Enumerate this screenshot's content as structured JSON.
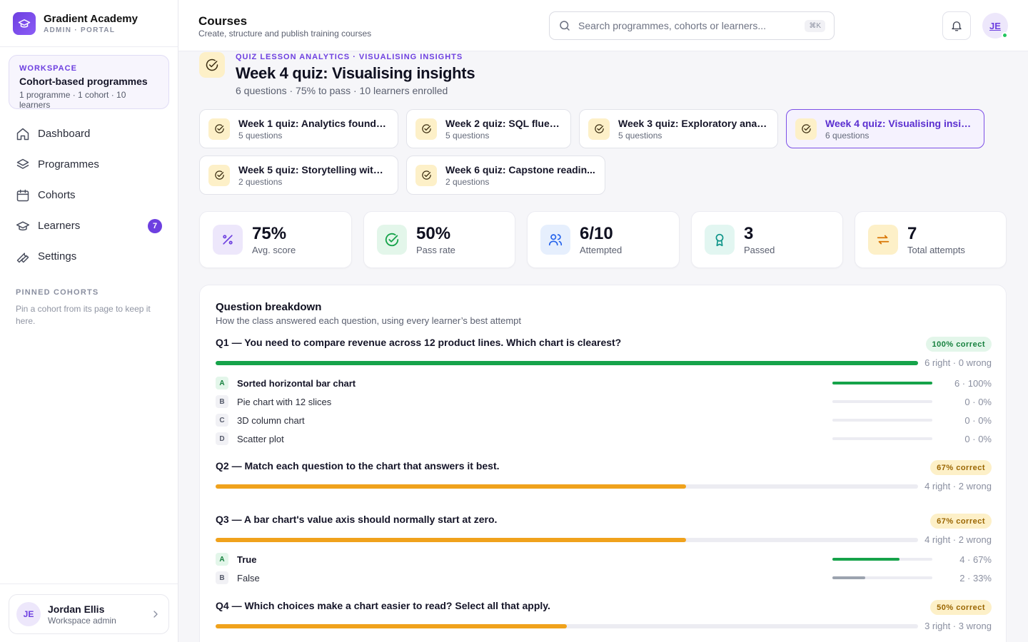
{
  "brand": {
    "name": "Gradient Academy",
    "sub": "ADMIN · PORTAL"
  },
  "workspace": {
    "label": "WORKSPACE",
    "title": "Cohort-based programmes",
    "meta": "1 programme · 1 cohort · 10 learners"
  },
  "nav": [
    {
      "label": "Dashboard",
      "icon": "home-icon"
    },
    {
      "label": "Programmes",
      "icon": "layers-icon"
    },
    {
      "label": "Cohorts",
      "icon": "calendar-icon"
    },
    {
      "label": "Learners",
      "icon": "graduation-cap-icon",
      "badge": "7"
    },
    {
      "label": "Settings",
      "icon": "wrench-icon"
    }
  ],
  "pinned": {
    "heading": "PINNED COHORTS",
    "text": "Pin a cohort from its page to keep it here."
  },
  "user": {
    "initials": "JE",
    "name": "Jordan Ellis",
    "role": "Workspace admin"
  },
  "header": {
    "title": "Courses",
    "subtitle": "Create, structure and publish training courses",
    "search_placeholder": "Search programmes, cohorts or learners...",
    "shortcut": "⌘K",
    "avatar": "JE"
  },
  "quiz": {
    "eyebrow": "QUIZ LESSON ANALYTICS · VISUALISING INSIGHTS",
    "title": "Week 4 quiz: Visualising insights",
    "meta": "6 questions · 75% to pass · 10 learners enrolled"
  },
  "tabs": [
    {
      "name": "Week 1 quiz: Analytics foundat...",
      "questions": "5 questions"
    },
    {
      "name": "Week 2 quiz: SQL fluency",
      "questions": "5 questions"
    },
    {
      "name": "Week 3 quiz: Exploratory analy...",
      "questions": "5 questions"
    },
    {
      "name": "Week 4 quiz: Visualising insights",
      "questions": "6 questions",
      "active": true
    },
    {
      "name": "Week 5 quiz: Storytelling with ...",
      "questions": "2 questions"
    },
    {
      "name": "Week 6 quiz: Capstone readin...",
      "questions": "2 questions"
    }
  ],
  "stats": [
    {
      "value": "75%",
      "label": "Avg. score",
      "icon": "percent-icon"
    },
    {
      "value": "50%",
      "label": "Pass rate",
      "icon": "check-circle-icon"
    },
    {
      "value": "6/10",
      "label": "Attempted",
      "icon": "users-icon"
    },
    {
      "value": "3",
      "label": "Passed",
      "icon": "award-icon"
    },
    {
      "value": "7",
      "label": "Total attempts",
      "icon": "repeat-icon"
    }
  ],
  "breakdown": {
    "title": "Question breakdown",
    "subtitle": "How the class answered each question, using every learner’s best attempt",
    "questions": [
      {
        "text": "Q1 — You need to compare revenue across 12 product lines. Which chart is clearest?",
        "pill": "100% correct",
        "pct": 100,
        "rw": "6 right · 0 wrong",
        "options": [
          {
            "letter": "A",
            "text": "Sorted horizontal bar chart",
            "correct": true,
            "pct": 100,
            "val": "6 · 100%"
          },
          {
            "letter": "B",
            "text": "Pie chart with 12 slices",
            "pct": 0,
            "val": "0 · 0%"
          },
          {
            "letter": "C",
            "text": "3D column chart",
            "pct": 0,
            "val": "0 · 0%"
          },
          {
            "letter": "D",
            "text": "Scatter plot",
            "pct": 0,
            "val": "0 · 0%"
          }
        ]
      },
      {
        "text": "Q2 — Match each question to the chart that answers it best.",
        "pill": "67% correct",
        "pct": 67,
        "rw": "4 right · 2 wrong",
        "options": []
      },
      {
        "text": "Q3 — A bar chart's value axis should normally start at zero.",
        "pill": "67% correct",
        "pct": 67,
        "rw": "4 right · 2 wrong",
        "options": [
          {
            "letter": "A",
            "text": "True",
            "correct": true,
            "pct": 67,
            "val": "4 · 67%"
          },
          {
            "letter": "B",
            "text": "False",
            "pct": 33,
            "val": "2 · 33%"
          }
        ]
      },
      {
        "text": "Q4 — Which choices make a chart easier to read? Select all that apply.",
        "pill": "50% correct",
        "pct": 50,
        "rw": "3 right · 3 wrong",
        "options": []
      }
    ]
  },
  "colors": {
    "accent": "#6d3fe0",
    "green": "#16a34a",
    "amber": "#f0a21c",
    "gray_bar": "#9ca3af"
  }
}
